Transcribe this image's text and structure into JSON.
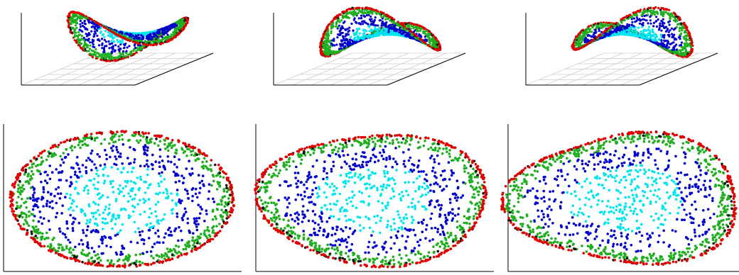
{
  "panels": [
    {
      "kind": "surface",
      "angle": 0.35
    },
    {
      "kind": "surface",
      "angle": 1.2
    },
    {
      "kind": "surface",
      "angle": 2.0
    },
    {
      "kind": "embedding",
      "warp": 0
    },
    {
      "kind": "embedding",
      "warp": 0.05
    },
    {
      "kind": "embedding",
      "warp": 0.08
    }
  ],
  "colors": {
    "core": "#00e5ee",
    "inner": "#0000cd",
    "outer": "#1fae1f",
    "edge": "#e00000",
    "dark": "#111111"
  }
}
